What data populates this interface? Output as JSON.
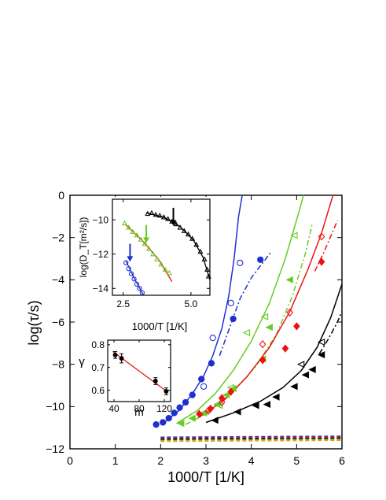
{
  "chart_data": [
    {
      "id": "main",
      "type": "scatter",
      "xlabel": "1000/T [1/K]",
      "ylabel": "log(τ/s)",
      "xlim": [
        0,
        6
      ],
      "ylim": [
        -12,
        0
      ],
      "xticks": [
        0,
        1,
        2,
        3,
        4,
        5,
        6
      ],
      "yticks": [
        0,
        -2,
        -4,
        -6,
        -8,
        -10,
        -12
      ],
      "grid": false,
      "series": [
        {
          "color": "#1f2fd0",
          "marker": "circle-filled",
          "points": [
            [
              1.9,
              -10.85
            ],
            [
              2.05,
              -10.75
            ],
            [
              2.18,
              -10.55
            ],
            [
              2.3,
              -10.3
            ],
            [
              2.42,
              -10.05
            ],
            [
              2.55,
              -9.8
            ],
            [
              2.7,
              -9.45
            ],
            [
              2.9,
              -8.7
            ],
            [
              3.12,
              -7.95
            ],
            [
              3.6,
              -5.85
            ],
            [
              4.2,
              -3.05
            ]
          ]
        },
        {
          "color": "#1f2fd0",
          "marker": "circle-open",
          "points": [
            [
              2.95,
              -9.05
            ],
            [
              3.15,
              -6.75
            ],
            [
              3.55,
              -5.1
            ],
            [
              3.75,
              -3.2
            ]
          ]
        },
        {
          "color": "#66cc22",
          "marker": "triangle-left-filled",
          "points": [
            [
              2.45,
              -10.8
            ],
            [
              2.7,
              -10.55
            ],
            [
              2.95,
              -10.3
            ],
            [
              3.25,
              -9.9
            ],
            [
              3.45,
              -9.45
            ],
            [
              3.6,
              -9.15
            ],
            [
              4.25,
              -7.75
            ],
            [
              4.4,
              -6.25
            ],
            [
              4.85,
              -4.0
            ]
          ]
        },
        {
          "color": "#66cc22",
          "marker": "triangle-left-open",
          "points": [
            [
              3.3,
              -9.95
            ],
            [
              3.55,
              -9.1
            ],
            [
              3.9,
              -6.5
            ],
            [
              4.3,
              -5.75
            ],
            [
              4.95,
              -1.9
            ]
          ]
        },
        {
          "color": "#ee1111",
          "marker": "diamond-filled",
          "points": [
            [
              2.85,
              -10.35
            ],
            [
              3.1,
              -10.1
            ],
            [
              3.35,
              -9.6
            ],
            [
              3.55,
              -9.3
            ],
            [
              4.25,
              -7.8
            ],
            [
              4.75,
              -7.25
            ],
            [
              5.0,
              -6.2
            ],
            [
              5.55,
              -3.15
            ]
          ]
        },
        {
          "color": "#ee1111",
          "marker": "diamond-open",
          "points": [
            [
              3.05,
              -10.2
            ],
            [
              3.35,
              -9.8
            ],
            [
              4.25,
              -7.05
            ],
            [
              4.85,
              -5.55
            ],
            [
              5.55,
              -1.95
            ]
          ]
        },
        {
          "color": "#000000",
          "marker": "triangle-left-filled",
          "points": [
            [
              3.2,
              -10.65
            ],
            [
              3.7,
              -10.25
            ],
            [
              4.1,
              -9.95
            ],
            [
              4.35,
              -9.9
            ],
            [
              4.55,
              -9.55
            ],
            [
              4.95,
              -9.05
            ],
            [
              5.2,
              -8.5
            ],
            [
              5.35,
              -8.25
            ],
            [
              5.55,
              -7.55
            ]
          ]
        },
        {
          "color": "#000000",
          "marker": "triangle-left-open",
          "points": [
            [
              5.1,
              -8.0
            ],
            [
              5.55,
              -6.95
            ]
          ]
        }
      ],
      "curves": [
        {
          "color": "#1f2fd0",
          "style": "solid",
          "points": [
            [
              2.05,
              -10.8
            ],
            [
              2.4,
              -10.2
            ],
            [
              2.7,
              -9.4
            ],
            [
              2.95,
              -8.55
            ],
            [
              3.15,
              -7.6
            ],
            [
              3.35,
              -6.3
            ],
            [
              3.5,
              -4.8
            ],
            [
              3.62,
              -3.0
            ],
            [
              3.72,
              -1.0
            ],
            [
              3.8,
              0.0
            ]
          ]
        },
        {
          "color": "#1f2fd0",
          "style": "dash-dot",
          "points": [
            [
              3.3,
              -7.6
            ],
            [
              3.5,
              -6.4
            ],
            [
              3.75,
              -4.9
            ],
            [
              4.0,
              -3.9
            ],
            [
              4.45,
              -2.65
            ]
          ]
        },
        {
          "color": "#66cc22",
          "style": "solid",
          "points": [
            [
              2.35,
              -10.8
            ],
            [
              2.8,
              -10.2
            ],
            [
              3.2,
              -9.4
            ],
            [
              3.6,
              -8.3
            ],
            [
              4.0,
              -6.9
            ],
            [
              4.4,
              -5.1
            ],
            [
              4.75,
              -3.0
            ],
            [
              5.05,
              -0.8
            ],
            [
              5.15,
              0.0
            ]
          ]
        },
        {
          "color": "#66cc22",
          "style": "dash-dot",
          "points": [
            [
              2.55,
              -10.85
            ],
            [
              3.05,
              -10.3
            ],
            [
              3.6,
              -9.3
            ],
            [
              4.1,
              -8.1
            ],
            [
              4.55,
              -6.6
            ],
            [
              4.9,
              -4.8
            ],
            [
              5.2,
              -2.7
            ],
            [
              5.35,
              -1.3
            ]
          ]
        },
        {
          "color": "#ee1111",
          "style": "solid",
          "points": [
            [
              2.85,
              -10.5
            ],
            [
              3.4,
              -9.7
            ],
            [
              3.9,
              -8.6
            ],
            [
              4.4,
              -7.2
            ],
            [
              4.85,
              -5.5
            ],
            [
              5.25,
              -3.5
            ],
            [
              5.55,
              -1.8
            ],
            [
              5.8,
              0.0
            ]
          ]
        },
        {
          "color": "#ee1111",
          "style": "dash-dot",
          "points": [
            [
              5.4,
              -3.6
            ],
            [
              5.6,
              -2.7
            ],
            [
              5.8,
              -1.7
            ],
            [
              5.9,
              -1.2
            ]
          ]
        },
        {
          "color": "#000000",
          "style": "solid",
          "points": [
            [
              3.0,
              -10.75
            ],
            [
              3.6,
              -10.3
            ],
            [
              4.2,
              -9.75
            ],
            [
              4.7,
              -9.1
            ],
            [
              5.1,
              -8.3
            ],
            [
              5.45,
              -7.2
            ],
            [
              5.75,
              -5.8
            ],
            [
              6.0,
              -4.2
            ]
          ]
        },
        {
          "color": "#000000",
          "style": "dash-dot",
          "points": [
            [
              5.5,
              -7.5
            ],
            [
              5.7,
              -6.8
            ],
            [
              5.9,
              -6.0
            ],
            [
              6.0,
              -5.5
            ]
          ]
        },
        {
          "color": "#1f2fd0",
          "style": "dashed",
          "points": [
            [
              2.0,
              -11.45
            ],
            [
              6.0,
              -11.4
            ]
          ]
        },
        {
          "color": "#ee1111",
          "style": "dashed",
          "points": [
            [
              2.0,
              -11.5
            ],
            [
              6.0,
              -11.45
            ]
          ]
        },
        {
          "color": "#000000",
          "style": "dashed",
          "points": [
            [
              2.0,
              -11.55
            ],
            [
              6.0,
              -11.5
            ]
          ]
        },
        {
          "color": "#66cc22",
          "style": "dashed",
          "points": [
            [
              2.0,
              -11.6
            ],
            [
              6.0,
              -11.55
            ]
          ]
        },
        {
          "color": "#e8a020",
          "style": "dashed",
          "points": [
            [
              2.0,
              -11.65
            ],
            [
              6.0,
              -11.6
            ]
          ]
        }
      ]
    },
    {
      "id": "inset_diffusion",
      "type": "scatter",
      "xlabel": "1000/T [1/K]",
      "ylabel": "log(D_T[m²/s])",
      "xlim": [
        2.1,
        5.7
      ],
      "ylim": [
        -14.4,
        -8.8
      ],
      "xtick_labels": [
        "2.5",
        "5.0"
      ],
      "xticks": [
        2.5,
        5.0
      ],
      "yticks": [
        -10,
        -12,
        -14
      ],
      "series": [
        {
          "color": "#000000",
          "marker": "triangle-open",
          "points": [
            [
              3.4,
              -9.65
            ],
            [
              3.55,
              -9.6
            ],
            [
              3.7,
              -9.7
            ],
            [
              3.85,
              -9.75
            ],
            [
              4.0,
              -9.85
            ],
            [
              4.15,
              -9.95
            ],
            [
              4.3,
              -10.1
            ],
            [
              4.45,
              -10.25
            ],
            [
              4.6,
              -10.45
            ],
            [
              4.75,
              -10.65
            ],
            [
              4.9,
              -10.85
            ],
            [
              5.05,
              -11.1
            ],
            [
              5.2,
              -11.45
            ],
            [
              5.35,
              -11.85
            ],
            [
              5.5,
              -12.3
            ],
            [
              5.6,
              -12.9
            ],
            [
              5.65,
              -13.3
            ]
          ]
        },
        {
          "color": "#66cc22",
          "marker": "triangle-open",
          "points": [
            [
              2.55,
              -10.2
            ],
            [
              2.7,
              -10.45
            ],
            [
              2.85,
              -10.7
            ],
            [
              3.0,
              -10.9
            ],
            [
              3.15,
              -11.15
            ],
            [
              3.3,
              -11.4
            ],
            [
              3.45,
              -11.7
            ],
            [
              3.6,
              -12.0
            ],
            [
              3.75,
              -12.3
            ],
            [
              3.9,
              -12.6
            ],
            [
              4.05,
              -12.9
            ],
            [
              4.2,
              -13.1
            ]
          ]
        },
        {
          "color": "#1f2fd0",
          "marker": "circle-open",
          "points": [
            [
              2.6,
              -12.5
            ],
            [
              2.7,
              -12.85
            ],
            [
              2.8,
              -13.15
            ],
            [
              2.9,
              -13.45
            ],
            [
              3.0,
              -13.75
            ],
            [
              3.1,
              -14.0
            ],
            [
              3.2,
              -14.25
            ]
          ]
        }
      ],
      "curves": [
        {
          "color": "#000000",
          "style": "solid",
          "points": [
            [
              3.35,
              -9.6
            ],
            [
              4.0,
              -9.85
            ],
            [
              4.6,
              -10.4
            ],
            [
              5.1,
              -11.2
            ],
            [
              5.45,
              -12.2
            ],
            [
              5.7,
              -13.5
            ]
          ]
        },
        {
          "color": "#ee1111",
          "style": "solid",
          "points": [
            [
              2.6,
              -10.3
            ],
            [
              3.2,
              -11.2
            ],
            [
              3.8,
              -12.3
            ],
            [
              4.3,
              -13.6
            ]
          ]
        },
        {
          "color": "#1f2fd0",
          "style": "solid",
          "points": [
            [
              2.6,
              -12.4
            ],
            [
              2.9,
              -13.4
            ],
            [
              3.25,
              -14.4
            ]
          ]
        }
      ],
      "arrows": [
        {
          "color": "#000000",
          "x": 4.35,
          "y_from": -9.3,
          "y_to": -10.3
        },
        {
          "color": "#66cc22",
          "x": 3.35,
          "y_from": -10.3,
          "y_to": -11.3
        },
        {
          "color": "#1f2fd0",
          "x": 2.75,
          "y_from": -11.4,
          "y_to": -12.4
        }
      ]
    },
    {
      "id": "inset_gamma",
      "type": "scatter",
      "xlabel": "m",
      "ylabel": "γ",
      "xlim": [
        30,
        130
      ],
      "ylim": [
        0.55,
        0.82
      ],
      "xticks": [
        40,
        80,
        120
      ],
      "yticks": [
        0.8,
        0.7,
        0.6
      ],
      "series": [
        {
          "color": "#000000",
          "marker": "circle-filled",
          "points": [
            [
              42,
              0.755
            ],
            [
              52,
              0.74
            ],
            [
              106,
              0.64
            ],
            [
              123,
              0.595
            ]
          ],
          "errors": [
            0.015,
            0.02,
            0.015,
            0.015
          ]
        }
      ],
      "curves": [
        {
          "color": "#ee1111",
          "style": "solid",
          "points": [
            [
              38,
              0.77
            ],
            [
              126,
              0.59
            ]
          ]
        }
      ]
    }
  ]
}
